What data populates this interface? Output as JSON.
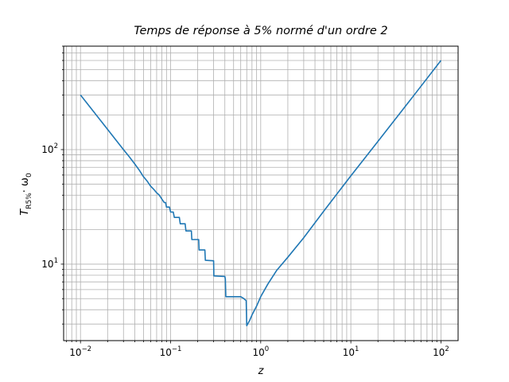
{
  "chart_data": {
    "type": "line",
    "title": "Temps de réponse à 5% normé d'un ordre 2",
    "xlabel": "z",
    "ylabel": {
      "main": "T",
      "sub": "R5%",
      "rest": "· ω",
      "rest_sub": "0"
    },
    "xscale": "log",
    "yscale": "log",
    "xlim": [
      0.0065,
      155
    ],
    "ylim": [
      2.15,
      800
    ],
    "grid": "both-major-and-minor",
    "x_ticks": [
      {
        "value": 0.01,
        "base": "10",
        "exp": "−2"
      },
      {
        "value": 0.1,
        "base": "10",
        "exp": "−1"
      },
      {
        "value": 1,
        "base": "10",
        "exp": "0"
      },
      {
        "value": 10,
        "base": "10",
        "exp": "1"
      },
      {
        "value": 100,
        "base": "10",
        "exp": "2"
      }
    ],
    "y_ticks": [
      {
        "value": 10,
        "base": "10",
        "exp": "1"
      },
      {
        "value": 100,
        "base": "10",
        "exp": "2"
      }
    ],
    "series": [
      {
        "color": "#1f77b4",
        "points": [
          [
            0.01,
            300
          ],
          [
            0.015,
            200
          ],
          [
            0.02,
            150
          ],
          [
            0.025,
            120
          ],
          [
            0.03,
            100
          ],
          [
            0.035,
            86
          ],
          [
            0.04,
            75
          ],
          [
            0.045,
            66
          ],
          [
            0.05,
            58
          ],
          [
            0.055,
            53
          ],
          [
            0.06,
            48
          ],
          [
            0.065,
            45
          ],
          [
            0.07,
            42
          ],
          [
            0.075,
            40
          ],
          [
            0.08,
            37
          ],
          [
            0.085,
            34.5
          ],
          [
            0.088,
            34.5
          ],
          [
            0.09,
            31.5
          ],
          [
            0.097,
            31.5
          ],
          [
            0.1,
            28.5
          ],
          [
            0.107,
            28.5
          ],
          [
            0.11,
            25.6
          ],
          [
            0.125,
            25.6
          ],
          [
            0.128,
            22.5
          ],
          [
            0.145,
            22.5
          ],
          [
            0.148,
            19.5
          ],
          [
            0.17,
            19.5
          ],
          [
            0.172,
            16.4
          ],
          [
            0.205,
            16.4
          ],
          [
            0.207,
            13.3
          ],
          [
            0.24,
            13.3
          ],
          [
            0.243,
            10.8
          ],
          [
            0.3,
            10.7
          ],
          [
            0.302,
            7.9
          ],
          [
            0.4,
            7.8
          ],
          [
            0.405,
            7.4
          ],
          [
            0.41,
            5.2
          ],
          [
            0.6,
            5.2
          ],
          [
            0.65,
            5.0
          ],
          [
            0.69,
            4.8
          ],
          [
            0.7,
            2.9
          ],
          [
            0.75,
            3.2
          ],
          [
            0.8,
            3.6
          ],
          [
            0.9,
            4.3
          ],
          [
            1.0,
            5.2
          ],
          [
            1.2,
            6.7
          ],
          [
            1.5,
            8.8
          ],
          [
            2,
            11.5
          ],
          [
            3,
            17
          ],
          [
            5,
            29
          ],
          [
            10,
            59
          ],
          [
            20,
            118
          ],
          [
            50,
            297
          ],
          [
            100,
            600
          ]
        ]
      }
    ]
  }
}
